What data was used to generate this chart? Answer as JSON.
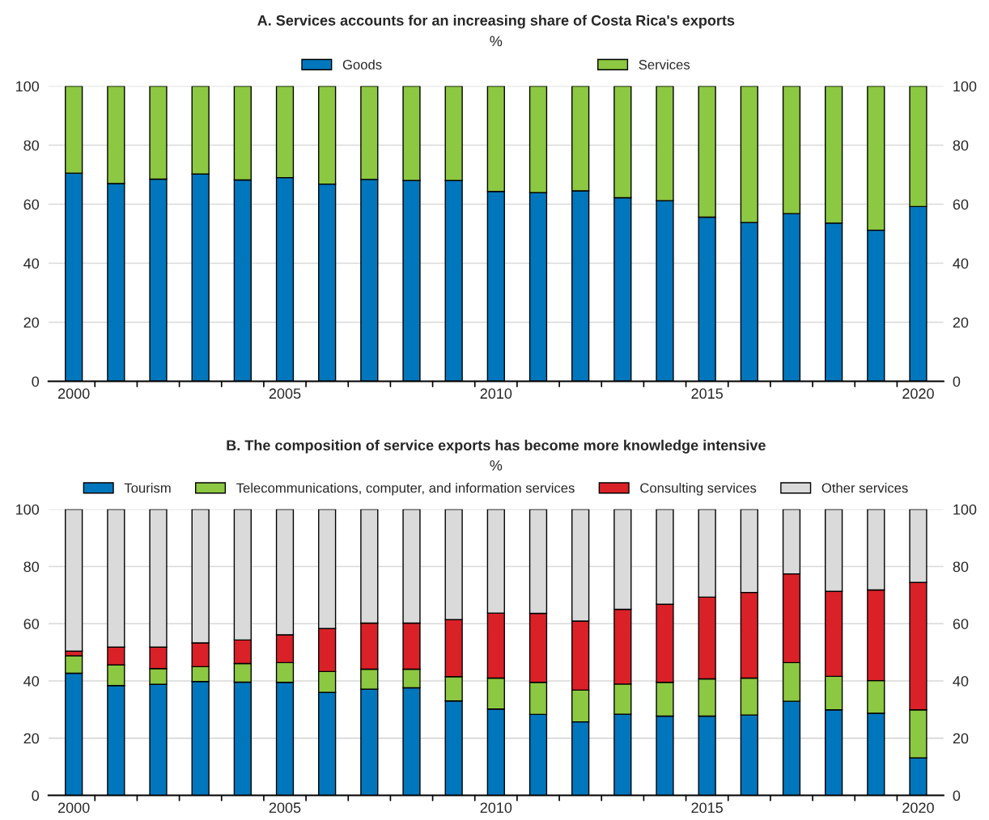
{
  "chart_data": [
    {
      "type": "bar",
      "title": "A. Services accounts for an increasing share of Costa Rica's exports",
      "subtitle": "%",
      "stacked": true,
      "grid": "y",
      "legend": "top",
      "categories": [
        "2000",
        null,
        null,
        null,
        null,
        "2005",
        null,
        null,
        null,
        null,
        "2010",
        null,
        null,
        null,
        null,
        "2015",
        null,
        null,
        null,
        null,
        "2020"
      ],
      "series": [
        {
          "name": "Goods",
          "color": "#0077bd",
          "values": [
            70.5,
            67,
            68.5,
            70.2,
            68.2,
            69,
            66.8,
            68.4,
            68,
            68,
            64.3,
            63.9,
            64.5,
            62.2,
            61.2,
            55.6,
            53.8,
            56.8,
            53.6,
            51.2,
            59.2
          ]
        },
        {
          "name": "Services",
          "color": "#8cc841",
          "values": [
            29.5,
            33,
            31.5,
            29.8,
            31.8,
            31,
            33.2,
            31.6,
            32,
            32,
            35.7,
            36.1,
            35.5,
            37.8,
            38.8,
            44.4,
            46.2,
            43.2,
            46.4,
            48.8,
            40.8
          ]
        }
      ],
      "ylim": [
        0,
        100
      ],
      "yticks": [
        0,
        20,
        40,
        60,
        80,
        100
      ],
      "y2lim": [
        0,
        100
      ],
      "y2ticks": [
        0,
        20,
        40,
        60,
        80,
        100
      ]
    },
    {
      "type": "bar",
      "title": "B. The composition of service exports has become more knowledge intensive",
      "subtitle": "%",
      "stacked": true,
      "grid": "y",
      "legend": "top",
      "categories": [
        "2000",
        null,
        null,
        null,
        null,
        "2005",
        null,
        null,
        null,
        null,
        "2010",
        null,
        null,
        null,
        null,
        "2015",
        null,
        null,
        null,
        null,
        "2020"
      ],
      "series": [
        {
          "name": "Tourism",
          "color": "#0077bd",
          "values": [
            42.7,
            38.4,
            38.8,
            39.8,
            39.6,
            39.5,
            36,
            37.1,
            37.6,
            33,
            30.2,
            28.3,
            25.7,
            28.4,
            27.7,
            27.7,
            28.1,
            32.9,
            29.9,
            28.7,
            13.1
          ]
        },
        {
          "name": "Telecommunications, computer, and information services",
          "color": "#8cc841",
          "values": [
            6.1,
            7.2,
            5.5,
            5.2,
            6.5,
            6.9,
            7.3,
            7.0,
            6.5,
            8.5,
            10.8,
            11.2,
            11.1,
            10.5,
            11.8,
            13.0,
            12.9,
            13.5,
            11.7,
            11.4,
            16.8
          ]
        },
        {
          "name": "Consulting services",
          "color": "#da2128",
          "values": [
            1.6,
            6.2,
            7.5,
            8.3,
            8.2,
            9.7,
            15.0,
            16.1,
            16.1,
            19.9,
            22.7,
            24.1,
            24.1,
            26.1,
            27.3,
            28.6,
            29.9,
            31.0,
            29.7,
            31.7,
            44.5
          ]
        },
        {
          "name": "Other services",
          "color": "#dadada",
          "values": [
            49.6,
            48.2,
            48.2,
            46.7,
            45.7,
            43.9,
            41.7,
            39.8,
            39.8,
            38.6,
            36.3,
            36.4,
            39.1,
            35.0,
            33.2,
            30.7,
            29.1,
            22.6,
            28.7,
            28.2,
            25.6
          ]
        }
      ],
      "ylim": [
        0,
        100
      ],
      "yticks": [
        0,
        20,
        40,
        60,
        80,
        100
      ],
      "y2lim": [
        0,
        100
      ],
      "y2ticks": [
        0,
        20,
        40,
        60,
        80,
        100
      ]
    }
  ]
}
